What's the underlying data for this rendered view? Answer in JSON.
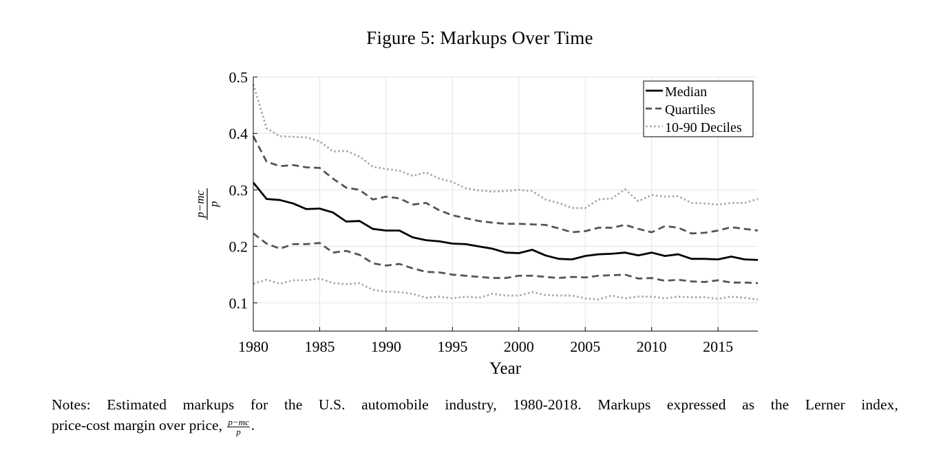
{
  "figure": {
    "title": "Figure 5:  Markups Over Time",
    "notes_line1": "Notes:  Estimated markups for the U.S. automobile industry, 1980-2018.  Markups expressed as the Lerner index,",
    "notes_line2": "price-cost margin over price,",
    "notes_frac_num": "p−mc",
    "notes_frac_den": "p",
    "notes_end": "."
  },
  "chart_data": {
    "type": "line",
    "xlabel": "Year",
    "ylabel_num": "p−mc",
    "ylabel_den": "p",
    "xlim": [
      1980,
      2018
    ],
    "ylim": [
      0.05,
      0.5
    ],
    "xticks": [
      1980,
      1985,
      1990,
      1995,
      2000,
      2005,
      2010,
      2015
    ],
    "yticks": [
      0.1,
      0.2,
      0.3,
      0.4,
      0.5
    ],
    "ytick_labels": [
      "0.1",
      "0.2",
      "0.3",
      "0.4",
      "0.5"
    ],
    "grid": true,
    "legend_position": "top-right",
    "x": [
      1980,
      1981,
      1982,
      1983,
      1984,
      1985,
      1986,
      1987,
      1988,
      1989,
      1990,
      1991,
      1992,
      1993,
      1994,
      1995,
      1996,
      1997,
      1998,
      1999,
      2000,
      2001,
      2002,
      2003,
      2004,
      2005,
      2006,
      2007,
      2008,
      2009,
      2010,
      2011,
      2012,
      2013,
      2014,
      2015,
      2016,
      2017,
      2018
    ],
    "series": [
      {
        "name": "Median",
        "style": "solid",
        "color": "#000000",
        "values": [
          0.313,
          0.284,
          0.282,
          0.276,
          0.266,
          0.267,
          0.26,
          0.244,
          0.245,
          0.231,
          0.228,
          0.228,
          0.216,
          0.211,
          0.209,
          0.205,
          0.204,
          0.2,
          0.196,
          0.189,
          0.188,
          0.194,
          0.184,
          0.178,
          0.177,
          0.183,
          0.186,
          0.187,
          0.189,
          0.184,
          0.189,
          0.183,
          0.186,
          0.178,
          0.178,
          0.177,
          0.182,
          0.177,
          0.176
        ]
      },
      {
        "name": "Quartiles",
        "style": "dashed",
        "color": "#555555",
        "values": [
          0.395,
          0.35,
          0.342,
          0.344,
          0.34,
          0.339,
          0.32,
          0.304,
          0.3,
          0.283,
          0.288,
          0.285,
          0.274,
          0.277,
          0.264,
          0.255,
          0.25,
          0.245,
          0.242,
          0.24,
          0.24,
          0.239,
          0.238,
          0.232,
          0.225,
          0.227,
          0.233,
          0.233,
          0.238,
          0.231,
          0.225,
          0.236,
          0.233,
          0.223,
          0.224,
          0.228,
          0.234,
          0.231,
          0.228
        ]
      },
      {
        "name": "Quartiles lower",
        "legend": false,
        "style": "dashed",
        "color": "#555555",
        "values": [
          0.223,
          0.205,
          0.196,
          0.204,
          0.204,
          0.206,
          0.189,
          0.192,
          0.185,
          0.17,
          0.166,
          0.169,
          0.161,
          0.155,
          0.154,
          0.15,
          0.148,
          0.146,
          0.144,
          0.144,
          0.148,
          0.148,
          0.146,
          0.144,
          0.146,
          0.145,
          0.148,
          0.149,
          0.15,
          0.143,
          0.144,
          0.139,
          0.141,
          0.138,
          0.137,
          0.14,
          0.136,
          0.136,
          0.135
        ]
      },
      {
        "name": "10-90 Deciles",
        "style": "dotted",
        "color": "#a6a6a6",
        "values": [
          0.487,
          0.409,
          0.395,
          0.394,
          0.393,
          0.386,
          0.368,
          0.369,
          0.359,
          0.341,
          0.337,
          0.334,
          0.325,
          0.331,
          0.32,
          0.314,
          0.303,
          0.299,
          0.297,
          0.298,
          0.3,
          0.298,
          0.283,
          0.277,
          0.268,
          0.268,
          0.283,
          0.285,
          0.301,
          0.28,
          0.291,
          0.288,
          0.289,
          0.277,
          0.276,
          0.274,
          0.277,
          0.277,
          0.284
        ]
      },
      {
        "name": "10-90 Deciles lower",
        "legend": false,
        "style": "dotted",
        "color": "#a6a6a6",
        "values": [
          0.134,
          0.141,
          0.134,
          0.14,
          0.14,
          0.143,
          0.135,
          0.133,
          0.135,
          0.123,
          0.12,
          0.119,
          0.116,
          0.109,
          0.111,
          0.108,
          0.111,
          0.109,
          0.116,
          0.113,
          0.113,
          0.119,
          0.114,
          0.113,
          0.113,
          0.108,
          0.106,
          0.113,
          0.108,
          0.111,
          0.111,
          0.108,
          0.111,
          0.11,
          0.11,
          0.107,
          0.111,
          0.109,
          0.106
        ]
      }
    ]
  }
}
